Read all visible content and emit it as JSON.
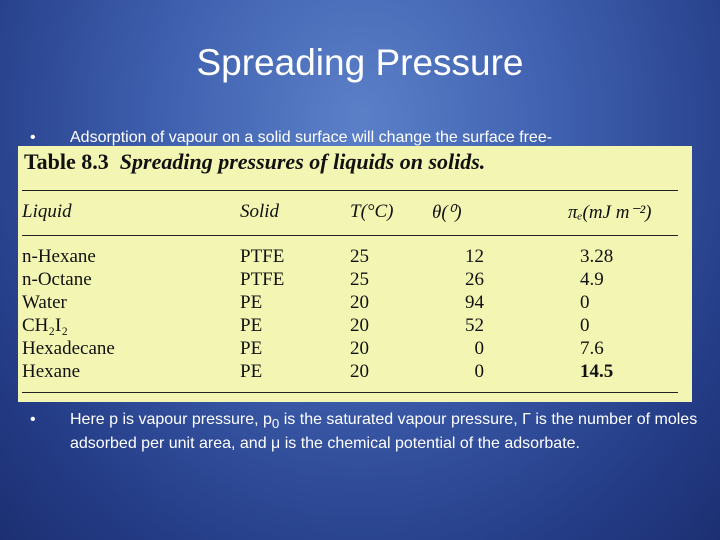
{
  "title": "Spreading Pressure",
  "bullets": [
    "Adsorption  of  vapour  on  a  solid surface  will  change the  surface free-",
    [
      "Here p is vapour pressure, p",
      "0",
      " is the saturated vapour pressure, Γ is the number of moles adsorbed per unit area, and μ is the chemical potential of  the adsorbate."
    ]
  ],
  "table": {
    "label": "Table 8.3",
    "caption": "Spreading pressures of liquids on solids.",
    "headers": [
      "Liquid",
      "Solid",
      "T(°C)",
      "θ(⁰)",
      "πₑ(mJ m⁻²)"
    ],
    "rows": [
      [
        "n-Hexane",
        "PTFE",
        25,
        12,
        3.28
      ],
      [
        "n-Octane",
        "PTFE",
        25,
        26,
        4.9
      ],
      [
        "Water",
        "PE",
        20,
        94,
        0
      ],
      [
        "CH₂I₂",
        "PE",
        20,
        52,
        0
      ],
      [
        "Hexadecane",
        "PE",
        20,
        0,
        7.6
      ],
      [
        "Hexane",
        "PE",
        20,
        0,
        14.5
      ]
    ]
  }
}
